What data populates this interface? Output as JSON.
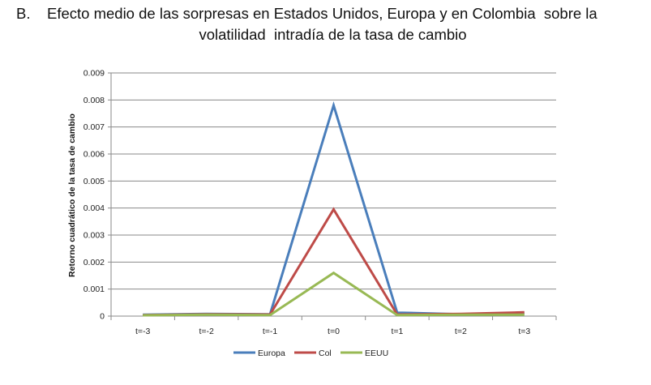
{
  "figure": {
    "label": "B.",
    "title_line1": "Efecto medio de las sorpresas en Estados Unidos, Europa y en Colombia  sobre la",
    "title_line2": "volatilidad  intradía de la tasa de cambio"
  },
  "chart_data": {
    "type": "line",
    "title": "B. Efecto medio de las sorpresas en Estados Unidos, Europa y en Colombia  sobre la volatilidad  intradía de la tasa de cambio",
    "xlabel": "",
    "ylabel": "Retorno cuadrático  de la tasa de cambio",
    "categories": [
      "t=-3",
      "t=-2",
      "t=-1",
      "t=0",
      "t=1",
      "t=2",
      "t=3"
    ],
    "ylim": [
      0,
      0.009
    ],
    "yticks": [
      "0",
      "0.001",
      "0.002",
      "0.003",
      "0.004",
      "0.005",
      "0.006",
      "0.007",
      "0.008",
      "0.009"
    ],
    "grid": true,
    "legend": "bottom",
    "series": [
      {
        "name": "Europa",
        "color": "#4a7ebb",
        "values": [
          5e-05,
          8e-05,
          7e-05,
          0.0078,
          0.00013,
          7e-05,
          9e-05
        ]
      },
      {
        "name": "Col",
        "color": "#be4b48",
        "values": [
          4e-05,
          7e-05,
          6e-05,
          0.00395,
          6e-05,
          8e-05,
          0.00014
        ]
      },
      {
        "name": "EEUU",
        "color": "#98b954",
        "values": [
          3e-05,
          5e-05,
          4e-05,
          0.0016,
          4e-05,
          5e-05,
          5e-05
        ]
      }
    ]
  }
}
